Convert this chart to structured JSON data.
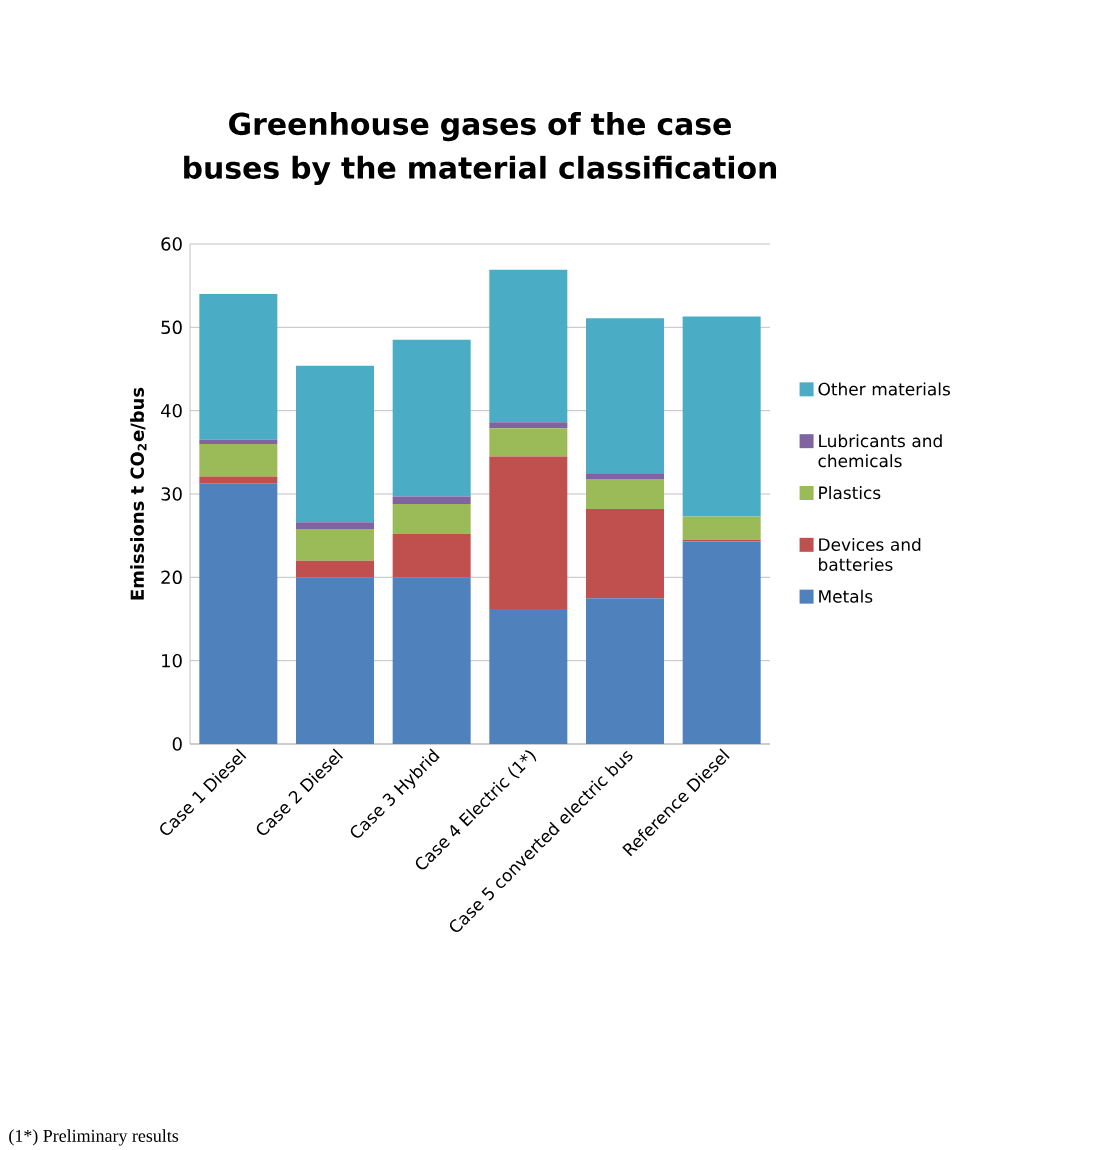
{
  "chart_data": {
    "type": "bar",
    "stacked": true,
    "title": "Greenhouse gases of the case buses by the material classification",
    "ylabel": "Emissions t CO$_{2}$e/bus",
    "categories": [
      "Case 1 Diesel",
      "Case 2 Diesel",
      "Case 3 Hybrid",
      "Case 4 Electric (1*)",
      "Case 5 converted electric bus",
      "Reference Diesel"
    ],
    "series": [
      {
        "name": "Metals",
        "color": "#4f81bd",
        "values": [
          31.3,
          20,
          20,
          16.2,
          17.5,
          24.3
        ]
      },
      {
        "name": "Devices and batteries",
        "color": "#c0504d",
        "values": [
          0.8,
          2,
          5.2,
          18.3,
          10.7,
          0.2
        ]
      },
      {
        "name": "Plastics",
        "color": "#9bbb59",
        "values": [
          3.9,
          3.8,
          3.6,
          3.4,
          3.6,
          2.8
        ]
      },
      {
        "name": "Lubricants and chemicals",
        "color": "#8064a2",
        "values": [
          0.5,
          0.8,
          0.9,
          0.7,
          0.7,
          null
        ]
      },
      {
        "name": "Other  materials",
        "color": "#4bacc6",
        "values": [
          17.5,
          18.8,
          18.8,
          18.3,
          18.6,
          24
        ]
      }
    ],
    "ylim": [
      0,
      60
    ],
    "yticks": [
      0,
      10,
      20,
      30,
      40,
      50,
      60
    ],
    "grid": "y",
    "legend": "right",
    "annotations": [
      "(1*) Preliminary results"
    ]
  }
}
